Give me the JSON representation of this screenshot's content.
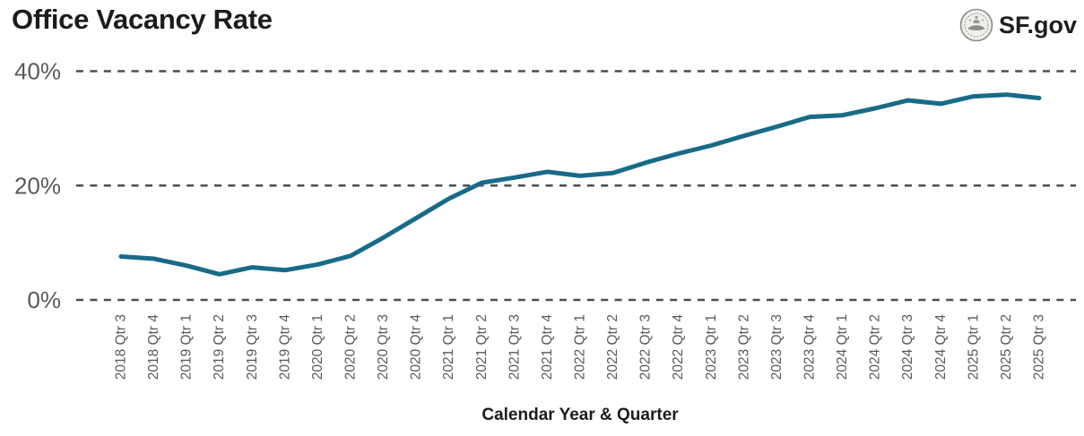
{
  "header": {
    "title": "Office Vacancy Rate",
    "logo_text": "SF.gov"
  },
  "chart_data": {
    "type": "line",
    "title": "Office Vacancy Rate",
    "xlabel": "Calendar Year & Quarter",
    "ylabel": "",
    "ylim": [
      0,
      40
    ],
    "grid": "horizontal-dashed",
    "legend": "none",
    "categories": [
      "2018 Qtr 3",
      "2018 Qtr 4",
      "2019 Qtr 1",
      "2019 Qtr 2",
      "2019 Qtr 3",
      "2019 Qtr 4",
      "2020 Qtr 1",
      "2020 Qtr 2",
      "2020 Qtr 3",
      "2020 Qtr 4",
      "2021 Qtr 1",
      "2021 Qtr 2",
      "2021 Qtr 3",
      "2021 Qtr 4",
      "2022 Qtr 1",
      "2022 Qtr 2",
      "2022 Qtr 3",
      "2022 Qtr 4",
      "2023 Qtr 1",
      "2023 Qtr 2",
      "2023 Qtr 3",
      "2023 Qtr 4",
      "2024 Qtr 1",
      "2024 Qtr 2",
      "2024 Qtr 3",
      "2024 Qtr 4",
      "2025 Qtr 1",
      "2025 Qtr 2",
      "2025 Qtr 3"
    ],
    "values": [
      7.6,
      7.2,
      6.0,
      4.5,
      5.7,
      5.2,
      6.2,
      7.7,
      10.9,
      14.3,
      17.7,
      20.5,
      21.4,
      22.4,
      21.7,
      22.2,
      24.0,
      25.6,
      27.0,
      28.7,
      30.3,
      32.0,
      32.3,
      33.5,
      34.9,
      34.3,
      35.6,
      35.9,
      35.3
    ],
    "y_ticks": [
      {
        "value": 0,
        "label": "0%"
      },
      {
        "value": 20,
        "label": "20%"
      },
      {
        "value": 40,
        "label": "40%"
      }
    ]
  },
  "colors": {
    "line": "#186b88",
    "grid": "#4d4d4d",
    "tick_text": "#595959",
    "title_text": "#1c1c1c"
  }
}
